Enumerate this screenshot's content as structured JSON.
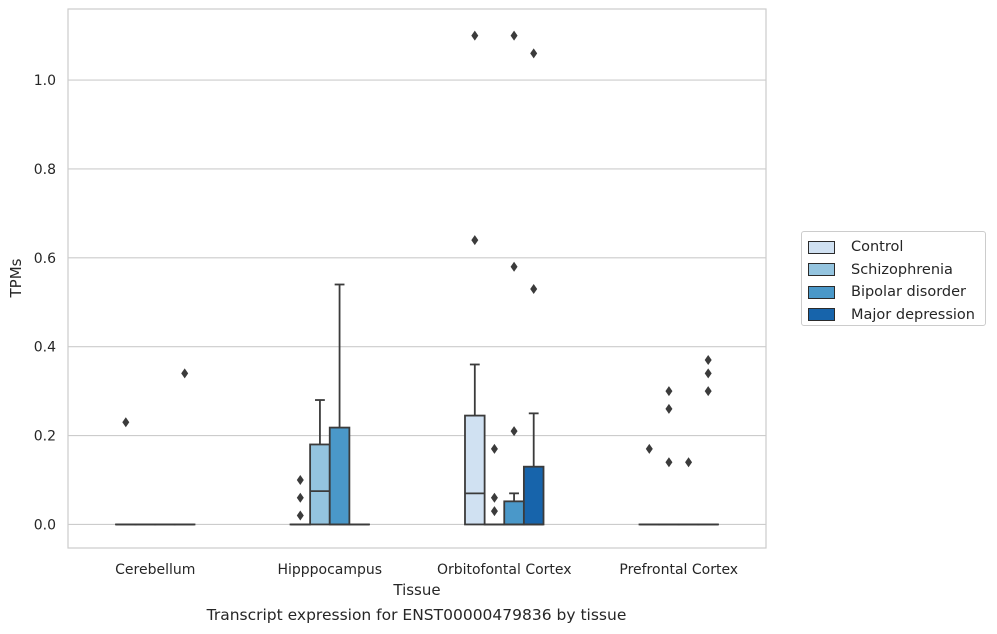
{
  "chart_data": {
    "type": "box",
    "title": "Transcript expression for ENST00000479836 by tissue",
    "xlabel": "Tissue",
    "ylabel": "TPMs",
    "ylim": [
      -0.053,
      1.16
    ],
    "yticks": [
      "0.0",
      "0.2",
      "0.4",
      "0.6",
      "0.8",
      "1.0"
    ],
    "grid": "horizontal",
    "legend_position": "right",
    "categories": [
      "Cerebellum",
      "Hipppocampus",
      "Orbitofontal Cortex",
      "Prefrontal Cortex"
    ],
    "series": [
      {
        "name": "Control",
        "color": "#d0e1f2",
        "boxes": [
          {
            "q1": 0,
            "median": 0,
            "q3": 0,
            "whisker_low": 0,
            "whisker_high": 0,
            "outliers": [
              0.23
            ]
          },
          {
            "q1": 0,
            "median": 0,
            "q3": 0,
            "whisker_low": 0,
            "whisker_high": 0,
            "outliers": [
              0.02,
              0.06,
              0.1
            ]
          },
          {
            "q1": 0,
            "median": 0.07,
            "q3": 0.245,
            "whisker_low": 0,
            "whisker_high": 0.36,
            "outliers": [
              0.64,
              1.1
            ]
          },
          {
            "q1": 0,
            "median": 0,
            "q3": 0,
            "whisker_low": 0,
            "whisker_high": 0,
            "outliers": [
              0.17
            ]
          }
        ]
      },
      {
        "name": "Schizophrenia",
        "color": "#94c4df",
        "boxes": [
          {
            "q1": 0,
            "median": 0,
            "q3": 0,
            "whisker_low": 0,
            "whisker_high": 0,
            "outliers": []
          },
          {
            "q1": 0,
            "median": 0.075,
            "q3": 0.18,
            "whisker_low": 0,
            "whisker_high": 0.28,
            "outliers": []
          },
          {
            "q1": 0,
            "median": 0,
            "q3": 0,
            "whisker_low": 0,
            "whisker_high": 0,
            "outliers": [
              0.03,
              0.06,
              0.17
            ]
          },
          {
            "q1": 0,
            "median": 0,
            "q3": 0,
            "whisker_low": 0,
            "whisker_high": 0,
            "outliers": [
              0.14,
              0.26,
              0.3
            ]
          }
        ]
      },
      {
        "name": "Bipolar disorder",
        "color": "#4a98c9",
        "boxes": [
          {
            "q1": 0,
            "median": 0,
            "q3": 0,
            "whisker_low": 0,
            "whisker_high": 0,
            "outliers": []
          },
          {
            "q1": 0,
            "median": 0,
            "q3": 0.218,
            "whisker_low": 0,
            "whisker_high": 0.54,
            "outliers": []
          },
          {
            "q1": 0,
            "median": 0,
            "q3": 0.052,
            "whisker_low": 0,
            "whisker_high": 0.07,
            "outliers": [
              0.21,
              0.58,
              1.1
            ]
          },
          {
            "q1": 0,
            "median": 0,
            "q3": 0,
            "whisker_low": 0,
            "whisker_high": 0,
            "outliers": [
              0.14
            ]
          }
        ]
      },
      {
        "name": "Major depression",
        "color": "#1764ab",
        "boxes": [
          {
            "q1": 0,
            "median": 0,
            "q3": 0,
            "whisker_low": 0,
            "whisker_high": 0,
            "outliers": [
              0.34
            ]
          },
          {
            "q1": 0,
            "median": 0,
            "q3": 0,
            "whisker_low": 0,
            "whisker_high": 0,
            "outliers": []
          },
          {
            "q1": 0,
            "median": 0,
            "q3": 0.13,
            "whisker_low": 0,
            "whisker_high": 0.25,
            "outliers": [
              0.53,
              1.06
            ]
          },
          {
            "q1": 0,
            "median": 0,
            "q3": 0,
            "whisker_low": 0,
            "whisker_high": 0,
            "outliers": [
              0.3,
              0.34,
              0.37
            ]
          }
        ]
      }
    ]
  }
}
